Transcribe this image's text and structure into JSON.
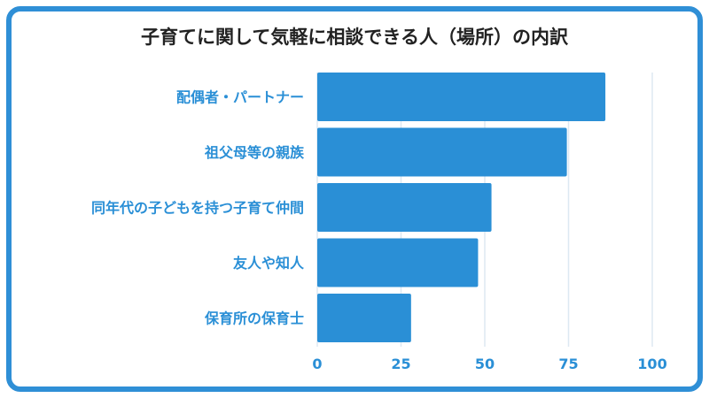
{
  "chart_data": {
    "type": "bar",
    "orientation": "horizontal",
    "title": "子育てに関して気軽に相談できる人（場所）の内訳",
    "categories": [
      "配偶者・パートナー",
      "祖父母等の親族",
      "同年代の子どもを持つ子育て仲間",
      "友人や知人",
      "保育所の保育士"
    ],
    "values": [
      86,
      74.5,
      52,
      48,
      28
    ],
    "xlim": [
      0,
      100
    ],
    "xticks": [
      "0",
      "25",
      "50",
      "75",
      "100"
    ],
    "grid": true,
    "bar_color": "#2a8fd6",
    "grid_color": "#dde8f2",
    "frame_color": "#2f8fd6"
  }
}
